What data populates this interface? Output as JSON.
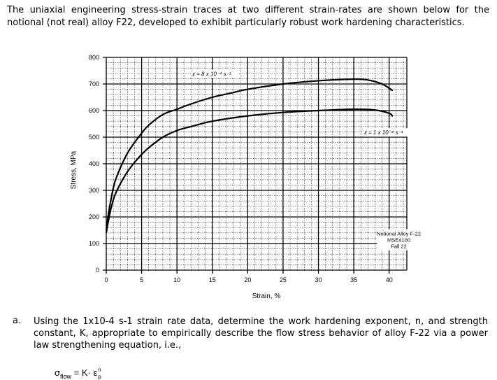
{
  "intro_text": "The uniaxial engineering stress-strain traces at two different strain-rates are shown below for the notional (not real) alloy F22, developed to exhibit particularly robust work hardening characteristics.",
  "chart_data": {
    "type": "line",
    "title": "",
    "xlabel": "Strain, %",
    "ylabel": "Stress, MPa",
    "xlim": [
      0,
      42.5
    ],
    "ylim": [
      0,
      800
    ],
    "x_ticks": [
      "0",
      "5",
      "10",
      "15",
      "20",
      "25",
      "30",
      "35",
      "40"
    ],
    "y_ticks": [
      "0",
      "100",
      "200",
      "300",
      "400",
      "500",
      "600",
      "700",
      "800"
    ],
    "grid": true,
    "series": [
      {
        "name": "ε̇ = 8 x 10⁻⁴ s⁻¹",
        "x": [
          0,
          0.3,
          0.7,
          1.2,
          2,
          3,
          4,
          5,
          6,
          8,
          10,
          12,
          15,
          18,
          20,
          25,
          30,
          35,
          37,
          39,
          40.5
        ],
        "y": [
          150,
          210,
          270,
          330,
          385,
          440,
          480,
          515,
          545,
          585,
          605,
          625,
          650,
          668,
          680,
          700,
          712,
          718,
          715,
          700,
          675
        ]
      },
      {
        "name": "ε̇ = 1 x 10⁻⁴ s⁻¹",
        "x": [
          0,
          0.3,
          0.7,
          1.2,
          2,
          3,
          4,
          5,
          6,
          8,
          10,
          12,
          15,
          20,
          25,
          30,
          35,
          38,
          40,
          40.5
        ],
        "y": [
          140,
          185,
          235,
          280,
          325,
          370,
          405,
          435,
          460,
          500,
          525,
          540,
          560,
          580,
          593,
          600,
          605,
          602,
          590,
          578
        ]
      }
    ],
    "annotations": [
      {
        "text": "ε̇ = 8 x 10⁻⁴ s⁻¹",
        "x": 12.2,
        "y": 730
      },
      {
        "text": "ε̇ = 1 x 10⁻⁴ s⁻¹",
        "x": 36.5,
        "y": 510
      },
      {
        "text": "Notional Alloy F-22\nMSE4100\nFall 22",
        "x": 38.5,
        "y": 130
      }
    ]
  },
  "question_label": "a.",
  "question_text": "Using the 1x10-4 s-1 strain rate data, determine the work hardening exponent, n, and strength constant, K, appropriate to empirically describe the flow stress behavior of alloy F-22 via a power law strengthening equation, i.e.,",
  "equation": {
    "sigma": "σ",
    "sub": "flow",
    "rhs": " = K· ε",
    "exp": "n",
    "eps_sub": "p"
  }
}
